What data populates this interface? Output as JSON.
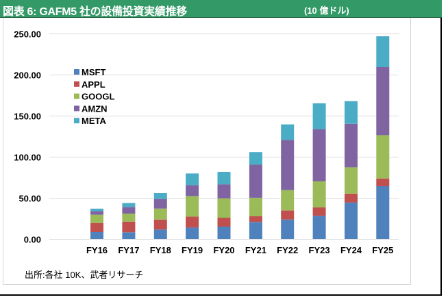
{
  "header": {
    "title": "図表 6:  GAFM5 社の設備投資実績推移",
    "unit": "(10 億ドル)"
  },
  "source": "出所:各社 10K、武者リサーチ",
  "chart_data": {
    "type": "bar",
    "stacked": true,
    "title": "図表 6:  GAFM5 社の設備投資実績推移",
    "unit": "10 億ドル",
    "xlabel": "",
    "ylabel": "",
    "ylim": [
      0,
      250
    ],
    "yticks": [
      0,
      50,
      100,
      150,
      200,
      250
    ],
    "ytick_labels": [
      "0.00",
      "50.00",
      "100.00",
      "150.00",
      "200.00",
      "250.00"
    ],
    "grid": "horizontal",
    "legend_position": "left",
    "categories": [
      "FY16",
      "FY17",
      "FY18",
      "FY19",
      "FY20",
      "FY21",
      "FY22",
      "FY23",
      "FY24",
      "FY25"
    ],
    "series": [
      {
        "name": "MSFT",
        "color": "#4f81bd",
        "values": [
          8.3,
          8.1,
          11.4,
          13.9,
          15.0,
          20.6,
          23.6,
          28.1,
          44.4,
          64.2
        ]
      },
      {
        "name": "APPL",
        "color": "#c0504d",
        "values": [
          11.1,
          13.0,
          12.2,
          13.3,
          10.8,
          7.2,
          11.1,
          10.3,
          10.8,
          9.4
        ]
      },
      {
        "name": "GOOGL",
        "color": "#9bbb59",
        "values": [
          10.0,
          9.8,
          13.3,
          25.0,
          23.6,
          22.3,
          24.7,
          31.7,
          32.0,
          52.8
        ]
      },
      {
        "name": "AMZN",
        "color": "#8064a2",
        "values": [
          4.4,
          7.8,
          11.7,
          13.3,
          17.0,
          40.3,
          61.1,
          63.6,
          53.0,
          82.8
        ]
      },
      {
        "name": "META",
        "color": "#4bacc6",
        "values": [
          3.0,
          5.0,
          7.2,
          14.2,
          15.3,
          15.3,
          18.9,
          31.4,
          27.5,
          37.5
        ]
      }
    ]
  }
}
